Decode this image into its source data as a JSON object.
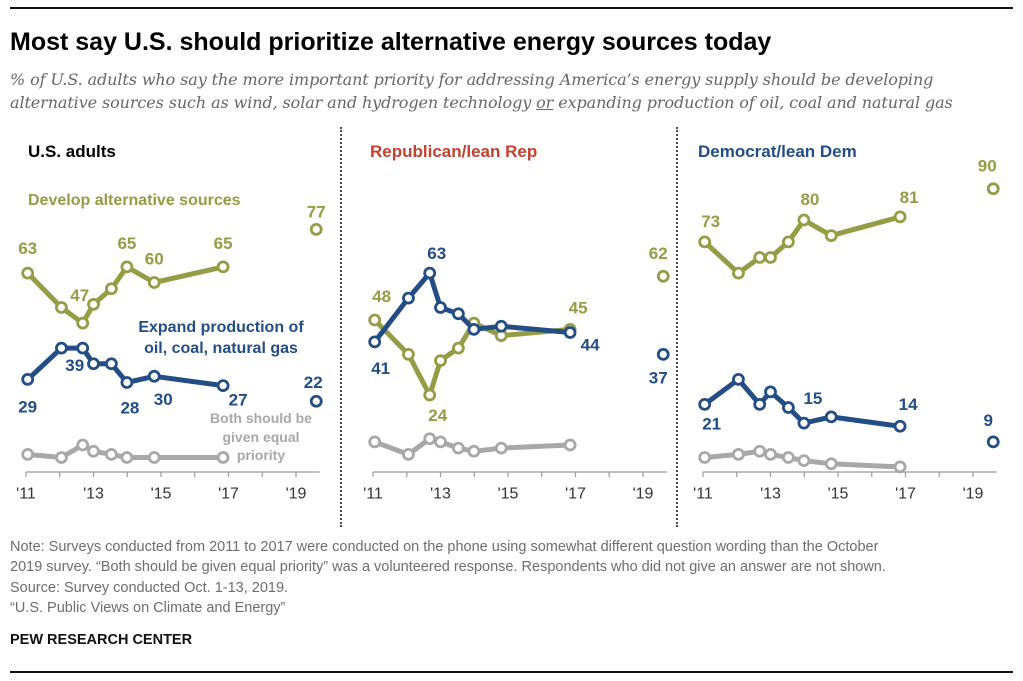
{
  "chart_data": {
    "type": "line",
    "title": "Most say U.S. should prioritize alternative energy sources today",
    "subtitle_lines": [
      "% of U.S. adults who say the more important priority for addressing America’s energy supply should be developing",
      {
        "before": "alternative sources such as wind, solar and hydrogen technology ",
        "underlined": "or",
        "after": " expanding production of oil, coal and natural gas"
      }
    ],
    "xlabel": "",
    "ylabel": "",
    "y_range": [
      0,
      100
    ],
    "x_range": [
      2011,
      2019.7
    ],
    "grid": false,
    "x_ticks": [
      2011,
      2012,
      2013,
      2014,
      2015,
      2016,
      2017,
      2018,
      2019
    ],
    "x_tick_labels": [
      {
        "value": 2011,
        "label": "'11"
      },
      {
        "value": 2013,
        "label": "'13"
      },
      {
        "value": 2015,
        "label": "'15"
      },
      {
        "value": 2017,
        "label": "'17"
      },
      {
        "value": 2019,
        "label": "'19"
      }
    ],
    "survey_dates": [
      2011.05,
      2012.05,
      2012.68,
      2013.0,
      2013.53,
      2013.99,
      2014.8,
      2016.84,
      2019.6
    ],
    "connected_points": 8,
    "panels": [
      {
        "title": "U.S. adults",
        "title_color": "#000000",
        "series": [
          {
            "name": "Both should be given equal priority",
            "legend_lines": [
              "Both should be",
              "given equal",
              "priority"
            ],
            "color": "#a8a8a8",
            "values": [
              5,
              4,
              8,
              6,
              5,
              4,
              4,
              4
            ],
            "labels": []
          },
          {
            "name": "Develop alternative sources",
            "legend_lines": [
              "Develop alternative sources"
            ],
            "color": "#949c44",
            "values": [
              63,
              52,
              47,
              53,
              58,
              65,
              60,
              65,
              77
            ],
            "labels": [
              {
                "index": 0,
                "text": "63"
              },
              {
                "index": 2,
                "text": "47"
              },
              {
                "index": 5,
                "text": "65"
              },
              {
                "index": 6,
                "text": "60"
              },
              {
                "index": 7,
                "text": "65"
              },
              {
                "index": 8,
                "text": "77"
              }
            ]
          },
          {
            "name": "Expand production of oil, coal, natural gas",
            "legend_lines": [
              "Expand production of",
              "oil, coal, natural gas"
            ],
            "color": "#234e85",
            "values": [
              29,
              39,
              39,
              34,
              34,
              28,
              30,
              27,
              22
            ],
            "labels": [
              {
                "index": 0,
                "text": "29"
              },
              {
                "index": 2,
                "text": "39"
              },
              {
                "index": 5,
                "text": "28"
              },
              {
                "index": 6,
                "text": "30"
              },
              {
                "index": 7,
                "text": "27"
              },
              {
                "index": 8,
                "text": "22"
              }
            ]
          }
        ]
      },
      {
        "title": "Republican/lean Rep",
        "title_color": "#c4402e",
        "series": [
          {
            "name": "Both should be given equal priority",
            "color": "#a8a8a8",
            "values": [
              9,
              5,
              10,
              9,
              7,
              6,
              7,
              8
            ],
            "labels": []
          },
          {
            "name": "Develop alternative sources",
            "color": "#949c44",
            "values": [
              48,
              37,
              24,
              35,
              39,
              47,
              43,
              45,
              62
            ],
            "labels": [
              {
                "index": 0,
                "text": "48"
              },
              {
                "index": 2,
                "text": "24"
              },
              {
                "index": 7,
                "text": "45"
              },
              {
                "index": 8,
                "text": "62"
              }
            ]
          },
          {
            "name": "Expand production of oil, coal, natural gas",
            "color": "#234e85",
            "values": [
              41,
              55,
              63,
              52,
              50,
              45,
              46,
              44,
              37
            ],
            "labels": [
              {
                "index": 0,
                "text": "41"
              },
              {
                "index": 2,
                "text": "63"
              },
              {
                "index": 7,
                "text": "44"
              },
              {
                "index": 8,
                "text": "37"
              }
            ]
          }
        ]
      },
      {
        "title": "Democrat/lean Dem",
        "title_color": "#234e85",
        "series": [
          {
            "name": "Both should be given equal priority",
            "color": "#a8a8a8",
            "values": [
              4,
              5,
              6,
              5,
              4,
              3,
              2,
              1
            ],
            "labels": []
          },
          {
            "name": "Develop alternative sources",
            "color": "#949c44",
            "values": [
              73,
              63,
              68,
              68,
              73,
              80,
              75,
              81,
              90
            ],
            "labels": [
              {
                "index": 0,
                "text": "73"
              },
              {
                "index": 5,
                "text": "80"
              },
              {
                "index": 7,
                "text": "81"
              },
              {
                "index": 8,
                "text": "90"
              }
            ]
          },
          {
            "name": "Expand production of oil, coal, natural gas",
            "color": "#234e85",
            "values": [
              21,
              29,
              21,
              25,
              20,
              15,
              17,
              14,
              9
            ],
            "labels": [
              {
                "index": 0,
                "text": "21"
              },
              {
                "index": 5,
                "text": "15"
              },
              {
                "index": 7,
                "text": "14"
              },
              {
                "index": 8,
                "text": "9"
              }
            ]
          }
        ]
      }
    ]
  },
  "footer": {
    "note_lines": [
      "Note: Surveys conducted from 2011 to 2017 were conducted on the phone using somewhat different question wording than the October",
      "2019 survey. “Both should be given equal priority” was a volunteered response. Respondents who did not give an answer are not shown."
    ],
    "source": "Source: Survey conducted Oct. 1-13, 2019.",
    "report": "“U.S. Public Views on Climate and Energy”",
    "brand": "PEW RESEARCH CENTER"
  }
}
